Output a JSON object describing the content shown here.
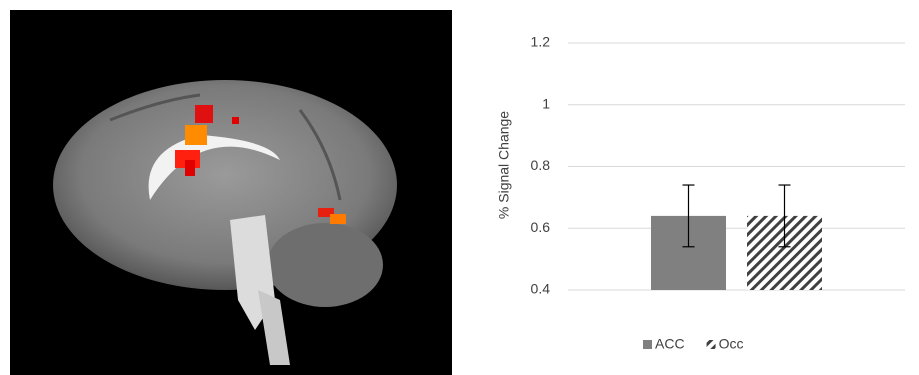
{
  "chart_data": {
    "type": "bar",
    "categories": [
      null
    ],
    "series": [
      {
        "name": "ACC",
        "color": "#808080",
        "values": [
          0.64
        ],
        "errors": [
          0.1
        ]
      },
      {
        "name": "Occ",
        "color": "#404040",
        "pattern": "hatch",
        "values": [
          0.64
        ],
        "errors": [
          0.1
        ]
      }
    ],
    "y_label": "% Signal Change",
    "ylim": [
      0.4,
      1.2
    ],
    "yticks": [
      0.4,
      0.6,
      0.8,
      1,
      1.2
    ],
    "grid": true,
    "legend": "bottom"
  }
}
